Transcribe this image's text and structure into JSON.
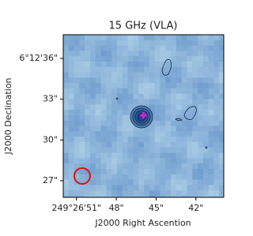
{
  "chart_data": {
    "type": "image",
    "title": "15 GHz (VLA)",
    "xlabel": "J2000 Right Ascention",
    "ylabel": "J2000 Declination",
    "xlim": [
      52.0,
      39.9
    ],
    "ylim": [
      25.78,
      37.74
    ],
    "xticks": [
      {
        "value": 51,
        "label": "249°26'51\""
      },
      {
        "value": 48,
        "label": "48\""
      },
      {
        "value": 45,
        "label": "45\""
      },
      {
        "value": 42,
        "label": "42\""
      }
    ],
    "yticks": [
      {
        "value": 36,
        "label": "6°12'36\""
      },
      {
        "value": 33,
        "label": "33\""
      },
      {
        "value": 30,
        "label": "30\""
      },
      {
        "value": 27,
        "label": "27\""
      }
    ],
    "marker": {
      "x": 45.95,
      "y": 31.8,
      "color": "#d020d0"
    },
    "beam_color": "#e01010"
  }
}
